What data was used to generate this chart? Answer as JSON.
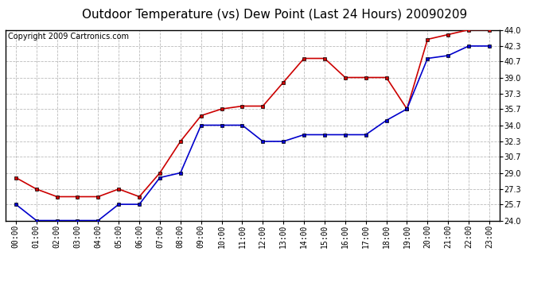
{
  "title": "Outdoor Temperature (vs) Dew Point (Last 24 Hours) 20090209",
  "copyright": "Copyright 2009 Cartronics.com",
  "x_labels": [
    "00:00",
    "01:00",
    "02:00",
    "03:00",
    "04:00",
    "05:00",
    "06:00",
    "07:00",
    "08:00",
    "09:00",
    "10:00",
    "11:00",
    "12:00",
    "13:00",
    "14:00",
    "15:00",
    "16:00",
    "17:00",
    "18:00",
    "19:00",
    "20:00",
    "21:00",
    "22:00",
    "23:00"
  ],
  "temp_data": [
    28.5,
    27.3,
    26.5,
    26.5,
    26.5,
    27.3,
    26.5,
    29.0,
    32.3,
    35.0,
    35.7,
    36.0,
    36.0,
    38.5,
    41.0,
    41.0,
    39.0,
    39.0,
    39.0,
    35.7,
    43.0,
    43.5,
    44.0,
    44.0
  ],
  "dew_data": [
    25.7,
    24.0,
    24.0,
    24.0,
    24.0,
    25.7,
    25.7,
    28.5,
    29.0,
    34.0,
    34.0,
    34.0,
    32.3,
    32.3,
    33.0,
    33.0,
    33.0,
    33.0,
    34.5,
    35.7,
    41.0,
    41.3,
    42.3,
    42.3
  ],
  "temp_color": "#cc0000",
  "dew_color": "#0000cc",
  "background_color": "#ffffff",
  "grid_color": "#bbbbbb",
  "ylim_min": 24.0,
  "ylim_max": 44.0,
  "yticks": [
    24.0,
    25.7,
    27.3,
    29.0,
    30.7,
    32.3,
    34.0,
    35.7,
    37.3,
    39.0,
    40.7,
    42.3,
    44.0
  ],
  "title_fontsize": 11,
  "copyright_fontsize": 7,
  "tick_fontsize": 7,
  "marker_size": 3.5,
  "line_width": 1.2
}
